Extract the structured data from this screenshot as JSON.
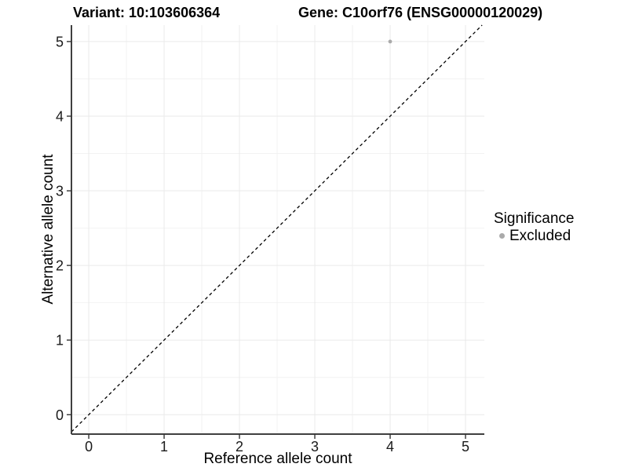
{
  "chart_data": {
    "type": "scatter",
    "title_left": "Variant: 10:103606364",
    "title_right": "Gene: C10orf76 (ENSG00000120029)",
    "xlabel": "Reference allele count",
    "ylabel": "Alternative allele count",
    "xlim": [
      -0.23,
      5.25
    ],
    "ylim": [
      -0.26,
      5.22
    ],
    "x_ticks": [
      0,
      1,
      2,
      3,
      4,
      5
    ],
    "y_ticks": [
      0,
      1,
      2,
      3,
      4,
      5
    ],
    "x_minor": [
      0.5,
      1.5,
      2.5,
      3.5,
      4.5
    ],
    "y_minor": [
      0.5,
      1.5,
      2.5,
      3.5,
      4.5
    ],
    "grid": "major+minor",
    "series": [
      {
        "name": "Excluded",
        "color": "#aaaaaa",
        "points": [
          [
            4,
            5
          ]
        ]
      }
    ],
    "reference_line": {
      "slope": 1,
      "intercept": 0,
      "style": "dashed",
      "color": "#000000"
    },
    "legend": {
      "position": "right",
      "title": "Significance",
      "entries": [
        {
          "label": "Excluded",
          "color": "#aaaaaa",
          "marker": "circle"
        }
      ]
    },
    "colors": {
      "grid_major": "#eaeaea",
      "grid_minor": "#f2f2f2",
      "axis_line": "#404040",
      "tick_mark": "#333333",
      "tick_text": "#1a1a1a"
    }
  }
}
